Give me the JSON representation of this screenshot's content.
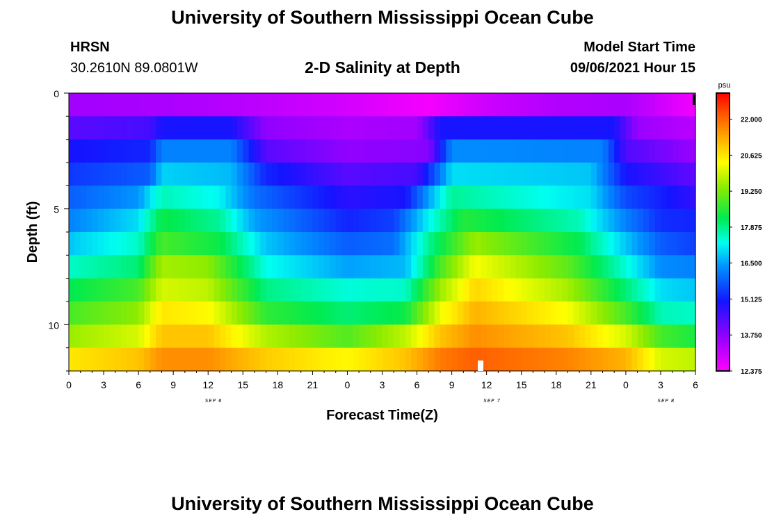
{
  "header": {
    "title": "University of Southern Mississippi Ocean Cube",
    "station": "HRSN",
    "coords": "30.2610N  89.0801W",
    "plot_title": "2-D Salinity at Depth",
    "model_label": "Model Start Time",
    "model_time": "09/06/2021 Hour 15"
  },
  "footer": {
    "title": "University of Southern Mississippi Ocean Cube"
  },
  "chart_data": {
    "type": "heatmap",
    "title": "2-D Salinity at Depth",
    "xlabel": "Forecast Time(Z)",
    "ylabel": "Depth (ft)",
    "x_range_hours": [
      0,
      54
    ],
    "y_range_ft": [
      0,
      12
    ],
    "x_tick_labels": [
      "0",
      "3",
      "6",
      "9",
      "12",
      "15",
      "18",
      "21",
      "0",
      "3",
      "6",
      "9",
      "12",
      "15",
      "18",
      "21",
      "0",
      "3",
      "6"
    ],
    "y_tick_labels": [
      "0",
      "5",
      "10"
    ],
    "y_tick_values": [
      0,
      5,
      10
    ],
    "date_labels": [
      {
        "text": "SEP 6",
        "hour": 12
      },
      {
        "text": "SEP 7",
        "hour": 36
      },
      {
        "text": "SEP 8",
        "hour": 51
      }
    ],
    "colorbar": {
      "unit": "psu",
      "min": 12.375,
      "max": 23.0,
      "tick_labels": [
        "22.000",
        "20.625",
        "19.250",
        "17.875",
        "16.500",
        "15.125",
        "13.750",
        "12.375"
      ],
      "tick_values": [
        22.0,
        20.625,
        19.25,
        17.875,
        16.5,
        15.125,
        13.75,
        12.375
      ]
    },
    "depth_layers_ft": [
      0.5,
      1.5,
      2.5,
      3.5,
      4.5,
      5.5,
      6.5,
      7.5,
      8.5,
      9.5,
      10.5,
      11.5
    ],
    "salinity_by_layer": [
      {
        "depth": 0.5,
        "values": [
          {
            "h": 0,
            "v": 13.5
          },
          {
            "h": 8,
            "v": 13.4
          },
          {
            "h": 16,
            "v": 13.2
          },
          {
            "h": 24,
            "v": 12.9
          },
          {
            "h": 31,
            "v": 12.5
          },
          {
            "h": 36,
            "v": 13.0
          },
          {
            "h": 42,
            "v": 13.3
          },
          {
            "h": 48,
            "v": 13.4
          },
          {
            "h": 54,
            "v": 12.5
          }
        ]
      },
      {
        "depth": 1.5,
        "values": [
          {
            "h": 0,
            "v": 14.3
          },
          {
            "h": 7,
            "v": 14.5
          },
          {
            "h": 8,
            "v": 15.0
          },
          {
            "h": 14,
            "v": 15.0
          },
          {
            "h": 17,
            "v": 13.7
          },
          {
            "h": 24,
            "v": 13.4
          },
          {
            "h": 30,
            "v": 13.5
          },
          {
            "h": 32,
            "v": 15.0
          },
          {
            "h": 47,
            "v": 15.0
          },
          {
            "h": 49,
            "v": 13.6
          },
          {
            "h": 54,
            "v": 13.2
          }
        ]
      },
      {
        "depth": 2.5,
        "values": [
          {
            "h": 0,
            "v": 15.0
          },
          {
            "h": 7,
            "v": 15.2
          },
          {
            "h": 8,
            "v": 16.2
          },
          {
            "h": 14,
            "v": 16.2
          },
          {
            "h": 17,
            "v": 14.3
          },
          {
            "h": 24,
            "v": 13.7
          },
          {
            "h": 31,
            "v": 13.8
          },
          {
            "h": 32,
            "v": 15.0
          },
          {
            "h": 33,
            "v": 16.3
          },
          {
            "h": 46,
            "v": 16.2
          },
          {
            "h": 48,
            "v": 14.4
          },
          {
            "h": 54,
            "v": 13.6
          }
        ]
      },
      {
        "depth": 3.5,
        "values": [
          {
            "h": 0,
            "v": 15.4
          },
          {
            "h": 7,
            "v": 15.8
          },
          {
            "h": 8,
            "v": 16.9
          },
          {
            "h": 14,
            "v": 16.7
          },
          {
            "h": 17,
            "v": 15.2
          },
          {
            "h": 24,
            "v": 14.3
          },
          {
            "h": 30,
            "v": 14.5
          },
          {
            "h": 32,
            "v": 16.1
          },
          {
            "h": 33,
            "v": 17.0
          },
          {
            "h": 45,
            "v": 16.8
          },
          {
            "h": 48,
            "v": 15.0
          },
          {
            "h": 54,
            "v": 14.2
          }
        ]
      },
      {
        "depth": 4.5,
        "values": [
          {
            "h": 0,
            "v": 15.8
          },
          {
            "h": 6,
            "v": 16.4
          },
          {
            "h": 8,
            "v": 17.6
          },
          {
            "h": 13,
            "v": 17.2
          },
          {
            "h": 16,
            "v": 16.0
          },
          {
            "h": 24,
            "v": 14.8
          },
          {
            "h": 29,
            "v": 15.0
          },
          {
            "h": 31,
            "v": 16.5
          },
          {
            "h": 33,
            "v": 17.8
          },
          {
            "h": 45,
            "v": 17.0
          },
          {
            "h": 48,
            "v": 15.6
          },
          {
            "h": 54,
            "v": 14.7
          }
        ]
      },
      {
        "depth": 5.5,
        "values": [
          {
            "h": 0,
            "v": 16.2
          },
          {
            "h": 6,
            "v": 17.0
          },
          {
            "h": 8,
            "v": 18.3
          },
          {
            "h": 13,
            "v": 17.8
          },
          {
            "h": 16,
            "v": 16.5
          },
          {
            "h": 24,
            "v": 15.2
          },
          {
            "h": 28,
            "v": 15.5
          },
          {
            "h": 31,
            "v": 17.2
          },
          {
            "h": 34,
            "v": 18.5
          },
          {
            "h": 44,
            "v": 17.6
          },
          {
            "h": 48,
            "v": 16.2
          },
          {
            "h": 51,
            "v": 15.3
          },
          {
            "h": 54,
            "v": 15.2
          }
        ]
      },
      {
        "depth": 6.5,
        "values": [
          {
            "h": 0,
            "v": 16.8
          },
          {
            "h": 6,
            "v": 17.5
          },
          {
            "h": 8,
            "v": 18.8
          },
          {
            "h": 13,
            "v": 18.3
          },
          {
            "h": 17,
            "v": 16.8
          },
          {
            "h": 24,
            "v": 15.8
          },
          {
            "h": 28,
            "v": 16.0
          },
          {
            "h": 31,
            "v": 17.8
          },
          {
            "h": 35,
            "v": 19.5
          },
          {
            "h": 44,
            "v": 18.2
          },
          {
            "h": 48,
            "v": 16.8
          },
          {
            "h": 51,
            "v": 15.8
          },
          {
            "h": 54,
            "v": 15.5
          }
        ]
      },
      {
        "depth": 7.5,
        "values": [
          {
            "h": 0,
            "v": 17.5
          },
          {
            "h": 6,
            "v": 18.0
          },
          {
            "h": 8,
            "v": 19.6
          },
          {
            "h": 12,
            "v": 19.4
          },
          {
            "h": 17,
            "v": 17.3
          },
          {
            "h": 24,
            "v": 16.5
          },
          {
            "h": 29,
            "v": 16.7
          },
          {
            "h": 32,
            "v": 18.8
          },
          {
            "h": 35,
            "v": 20.3
          },
          {
            "h": 43,
            "v": 19.0
          },
          {
            "h": 48,
            "v": 17.4
          },
          {
            "h": 51,
            "v": 16.3
          },
          {
            "h": 54,
            "v": 16.2
          }
        ]
      },
      {
        "depth": 8.5,
        "values": [
          {
            "h": 0,
            "v": 18.2
          },
          {
            "h": 6,
            "v": 18.8
          },
          {
            "h": 8,
            "v": 20.0
          },
          {
            "h": 12,
            "v": 19.8
          },
          {
            "h": 17,
            "v": 17.9
          },
          {
            "h": 24,
            "v": 17.4
          },
          {
            "h": 29,
            "v": 17.5
          },
          {
            "h": 32,
            "v": 19.5
          },
          {
            "h": 35,
            "v": 20.8
          },
          {
            "h": 43,
            "v": 19.6
          },
          {
            "h": 48,
            "v": 18.0
          },
          {
            "h": 51,
            "v": 17.0
          },
          {
            "h": 54,
            "v": 16.8
          }
        ]
      },
      {
        "depth": 9.5,
        "values": [
          {
            "h": 0,
            "v": 18.8
          },
          {
            "h": 6,
            "v": 19.4
          },
          {
            "h": 8,
            "v": 20.6
          },
          {
            "h": 12,
            "v": 20.4
          },
          {
            "h": 17,
            "v": 18.6
          },
          {
            "h": 24,
            "v": 18.0
          },
          {
            "h": 29,
            "v": 18.3
          },
          {
            "h": 32,
            "v": 20.2
          },
          {
            "h": 35,
            "v": 21.2
          },
          {
            "h": 43,
            "v": 20.3
          },
          {
            "h": 48,
            "v": 18.8
          },
          {
            "h": 51,
            "v": 17.6
          },
          {
            "h": 54,
            "v": 17.5
          }
        ]
      },
      {
        "depth": 10.5,
        "values": [
          {
            "h": 0,
            "v": 19.5
          },
          {
            "h": 6,
            "v": 20.0
          },
          {
            "h": 8,
            "v": 21.0
          },
          {
            "h": 12,
            "v": 21.0
          },
          {
            "h": 17,
            "v": 19.7
          },
          {
            "h": 24,
            "v": 18.9
          },
          {
            "h": 29,
            "v": 19.8
          },
          {
            "h": 32,
            "v": 21.0
          },
          {
            "h": 35,
            "v": 21.6
          },
          {
            "h": 43,
            "v": 21.0
          },
          {
            "h": 48,
            "v": 20.0
          },
          {
            "h": 51,
            "v": 18.8
          },
          {
            "h": 54,
            "v": 18.4
          }
        ]
      },
      {
        "depth": 11.5,
        "values": [
          {
            "h": 0,
            "v": 20.6
          },
          {
            "h": 6,
            "v": 21.0
          },
          {
            "h": 8,
            "v": 21.6
          },
          {
            "h": 12,
            "v": 21.6
          },
          {
            "h": 17,
            "v": 20.9
          },
          {
            "h": 24,
            "v": 20.4
          },
          {
            "h": 29,
            "v": 21.0
          },
          {
            "h": 32,
            "v": 21.8
          },
          {
            "h": 35,
            "v": 22.1
          },
          {
            "h": 43,
            "v": 21.7
          },
          {
            "h": 48,
            "v": 21.2
          },
          {
            "h": 51,
            "v": 20.0
          },
          {
            "h": 54,
            "v": 19.8
          }
        ]
      }
    ],
    "surface_row_note": "bottom row (deepest) also shows highest salinity ~22"
  }
}
